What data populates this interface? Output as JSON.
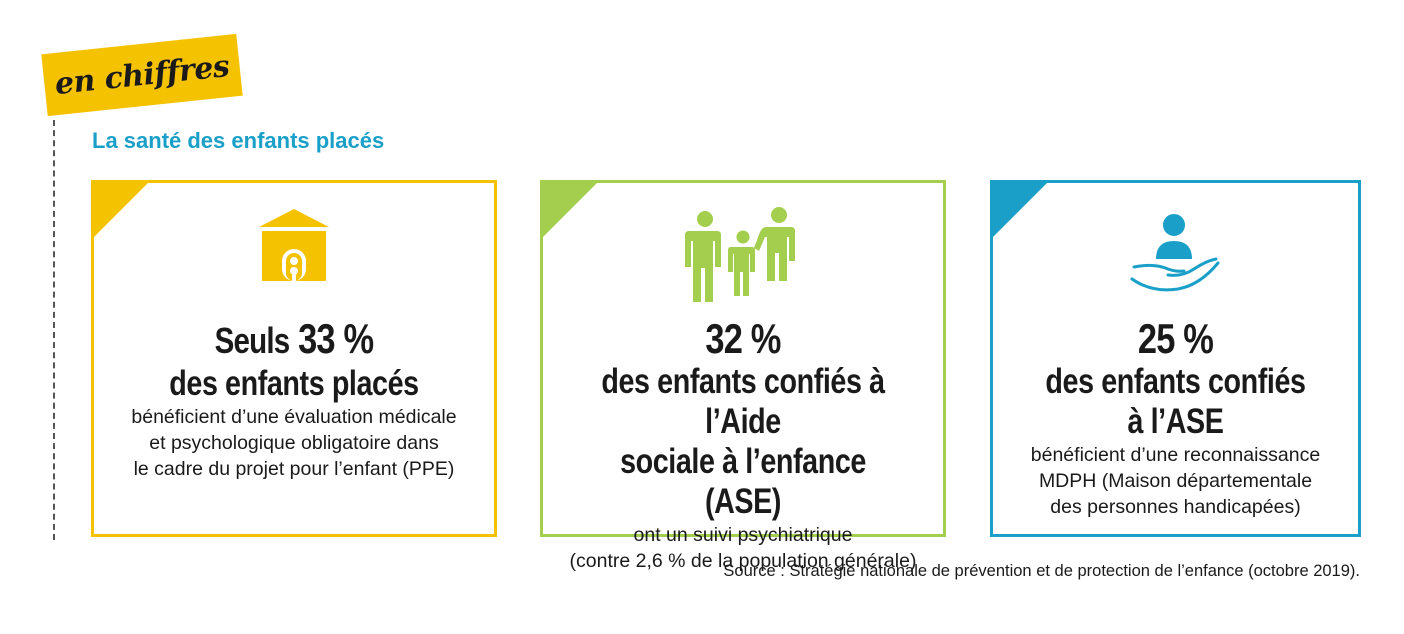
{
  "tag": {
    "label": "en chiffres"
  },
  "heading": "La santé des enfants placés",
  "colors": {
    "yellow": "#f5c200",
    "green": "#a4ce4e",
    "blue": "#1aa0c8"
  },
  "cards": [
    {
      "icon": "house-icon",
      "lead": "Seuls",
      "figure": "33 %",
      "subject": "des enfants placés",
      "detail": [
        "bénéficient d’une évaluation médicale",
        "et psychologique obligatoire dans",
        "le cadre du projet pour l’enfant (PPE)"
      ]
    },
    {
      "icon": "family-icon",
      "figure": "32 %",
      "subject": [
        "des enfants confiés à l’Aide",
        "sociale à l’enfance (ASE)"
      ],
      "detail": [
        "ont un suivi psychiatrique",
        "(contre 2,6 % de la population générale)"
      ]
    },
    {
      "icon": "hand-person-icon",
      "figure": "25 %",
      "subject": [
        "des enfants confiés",
        "à l’ASE"
      ],
      "detail": [
        "bénéficient d’une reconnaissance",
        "MDPH (Maison départementale",
        "des personnes handicapées)"
      ]
    }
  ],
  "source": "Source : Stratégie nationale de prévention et de protection de l’enfance (octobre 2019)."
}
